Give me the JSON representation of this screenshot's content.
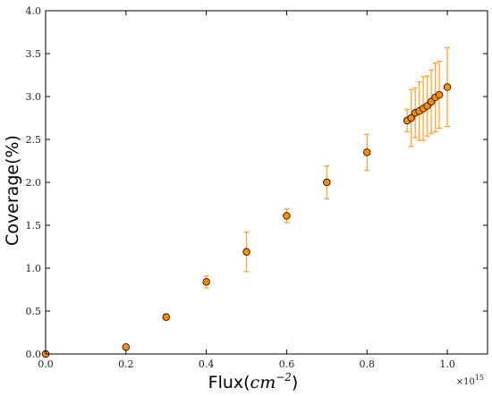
{
  "chart_data": {
    "type": "scatter",
    "xlabel": "Flux(",
    "xlabel_math": "cm",
    "xlabel_exp": "−2",
    "xlabel_close": ")",
    "ylabel": "Coverage(%)",
    "x_multiplier": "×10",
    "x_multiplier_exp": "15",
    "xlim": [
      0.0,
      1.1
    ],
    "ylim": [
      0.0,
      4.0
    ],
    "x_ticks": [
      0.0,
      0.2,
      0.4,
      0.6,
      0.8,
      1.0
    ],
    "x_tick_labels": [
      "0.0",
      "0.2",
      "0.4",
      "0.6",
      "0.8",
      "1.0"
    ],
    "y_ticks": [
      0.0,
      0.5,
      1.0,
      1.5,
      2.0,
      2.5,
      3.0,
      3.5,
      4.0
    ],
    "y_tick_labels": [
      "0.0",
      "0.5",
      "1.0",
      "1.5",
      "2.0",
      "2.5",
      "3.0",
      "3.5",
      "4.0"
    ],
    "grid": false,
    "marker_color": "#ff8c00",
    "errorbar_color": "#ffa530",
    "points": [
      {
        "x": 0.0,
        "y": 0.0,
        "err": 0.0
      },
      {
        "x": 0.2,
        "y": 0.08,
        "err": 0.0
      },
      {
        "x": 0.3,
        "y": 0.43,
        "err": 0.03
      },
      {
        "x": 0.4,
        "y": 0.84,
        "err": 0.07
      },
      {
        "x": 0.5,
        "y": 1.19,
        "err": 0.23
      },
      {
        "x": 0.6,
        "y": 1.61,
        "err": 0.08
      },
      {
        "x": 0.7,
        "y": 2.0,
        "err": 0.19
      },
      {
        "x": 0.8,
        "y": 2.35,
        "err": 0.21
      },
      {
        "x": 0.9,
        "y": 2.72,
        "err": 0.13
      },
      {
        "x": 0.91,
        "y": 2.75,
        "err": 0.33
      },
      {
        "x": 0.92,
        "y": 2.81,
        "err": 0.29
      },
      {
        "x": 0.93,
        "y": 2.83,
        "err": 0.34
      },
      {
        "x": 0.94,
        "y": 2.86,
        "err": 0.37
      },
      {
        "x": 0.95,
        "y": 2.89,
        "err": 0.35
      },
      {
        "x": 0.96,
        "y": 2.94,
        "err": 0.37
      },
      {
        "x": 0.97,
        "y": 2.99,
        "err": 0.4
      },
      {
        "x": 0.98,
        "y": 3.02,
        "err": 0.39
      },
      {
        "x": 1.0,
        "y": 3.11,
        "err": 0.46
      }
    ]
  }
}
